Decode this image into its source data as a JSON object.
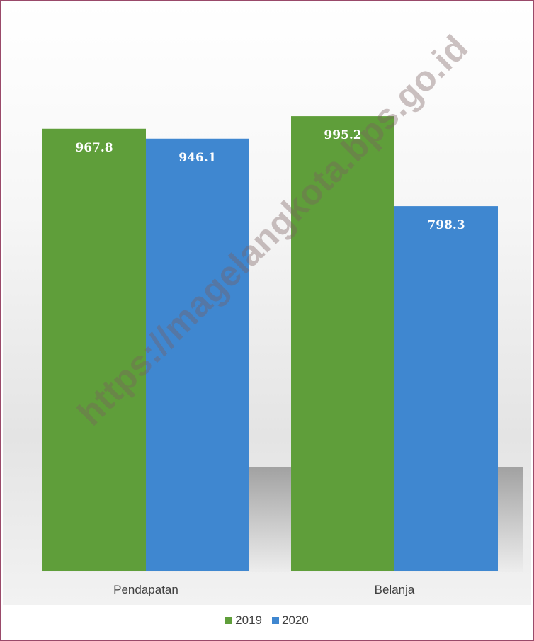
{
  "chart_data": {
    "type": "bar",
    "categories": [
      "Pendapatan",
      "Belanja"
    ],
    "series": [
      {
        "name": "2019",
        "values": [
          967.8,
          995.2
        ],
        "color": "#5f9e3a",
        "labels": [
          "967.8",
          "995.2"
        ]
      },
      {
        "name": "2020",
        "values": [
          946.1,
          798.3
        ],
        "color": "#3f87d0",
        "labels": [
          "946.1",
          "798.3"
        ]
      }
    ],
    "title": "",
    "xlabel": "",
    "ylabel": "",
    "ylim": [
      0,
      1000
    ],
    "grid": false,
    "legend_position": "bottom-center"
  },
  "watermark": "https://magelangkota.bps.go.id"
}
